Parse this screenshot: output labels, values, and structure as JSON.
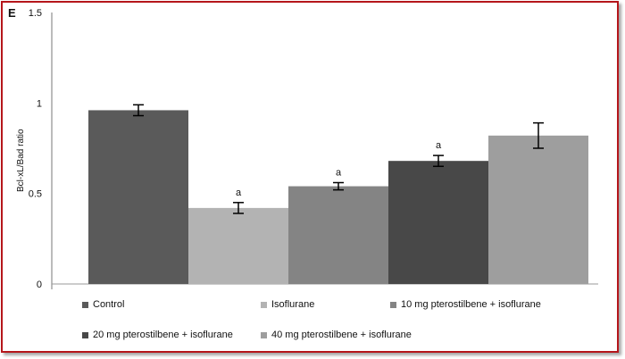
{
  "panel_label": "E",
  "chart_data": {
    "type": "bar",
    "ylabel": "Bcl-xL/Bad ratio",
    "ylim": [
      0,
      1.5
    ],
    "yticks": [
      "0",
      "0.5",
      "1",
      "1.5"
    ],
    "grid": false,
    "legend_position": "bottom",
    "series": [
      {
        "name": "Control",
        "value": 0.96,
        "error": 0.03,
        "sig": "",
        "color": "#5a5a5a"
      },
      {
        "name": "Isoflurane",
        "value": 0.42,
        "error": 0.03,
        "sig": "a",
        "color": "#b3b3b3"
      },
      {
        "name": "10 mg pterostilbene + isoflurane",
        "value": 0.54,
        "error": 0.02,
        "sig": "a",
        "color": "#848484"
      },
      {
        "name": "20 mg pterostilbene + isoflurane",
        "value": 0.68,
        "error": 0.03,
        "sig": "a",
        "color": "#484848"
      },
      {
        "name": "40 mg pterostilbene + isoflurane",
        "value": 0.82,
        "error": 0.07,
        "sig": "",
        "color": "#9e9e9e"
      }
    ]
  }
}
